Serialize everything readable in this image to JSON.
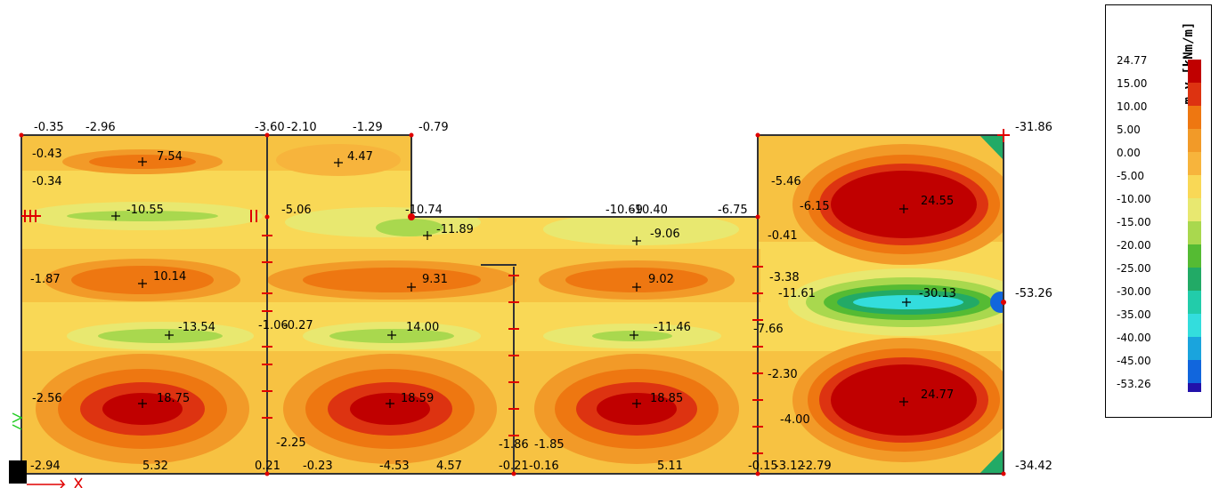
{
  "legend": {
    "title": "m_y [kNm/m]",
    "levels": [
      {
        "value": "24.77",
        "color": "#c00000"
      },
      {
        "value": "15.00",
        "color": "#dd3311"
      },
      {
        "value": "10.00",
        "color": "#ee7711"
      },
      {
        "value": "5.00",
        "color": "#f29a28"
      },
      {
        "value": "0.00",
        "color": "#f7b43c"
      },
      {
        "value": "-5.00",
        "color": "#f9d856"
      },
      {
        "value": "-10.00",
        "color": "#e8e870"
      },
      {
        "value": "-15.00",
        "color": "#a9d84e"
      },
      {
        "value": "-20.00",
        "color": "#55bb33"
      },
      {
        "value": "-25.00",
        "color": "#22aa66"
      },
      {
        "value": "-30.00",
        "color": "#22ccaa"
      },
      {
        "value": "-35.00",
        "color": "#33dddd"
      },
      {
        "value": "-40.00",
        "color": "#1aa4dd"
      },
      {
        "value": "-45.00",
        "color": "#1166dd"
      },
      {
        "value": "-53.26",
        "color": "#2211aa"
      }
    ]
  },
  "plot_labels": [
    "-0.35",
    "-2.96",
    "-3.60",
    "-2.10",
    "-1.29",
    "-0.79",
    "-31.86",
    "-0.43",
    "7.54",
    "4.47",
    "-0.34",
    "-5.46",
    "-6.15",
    "24.55",
    "-10.55",
    "-5.06",
    "-10.74",
    "-11.89",
    "-10.69",
    "-10.40",
    "-6.75",
    "-9.06",
    "-0.41",
    "-1.87",
    "10.14",
    "9.31",
    "9.02",
    "-3.38",
    "-11.61",
    "-30.13",
    "-53.26",
    "-13.54",
    "-1.06",
    "-0.27",
    "14.00",
    "-11.46",
    "-7.66",
    "-2.56",
    "18.75",
    "18.59",
    "18.85",
    "-2.30",
    "24.77",
    "-2.25",
    "-1.86",
    "-1.85",
    "-4.00",
    "-2.94",
    "5.32",
    "0.21",
    "-0.23",
    "-4.53",
    "4.57",
    "-0.21",
    "-0.16",
    "5.11",
    "-0.15",
    "-3.12",
    "-2.79",
    "-34.42"
  ]
}
